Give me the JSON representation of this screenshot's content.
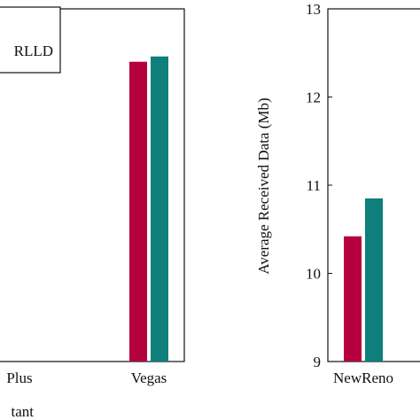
{
  "chart_data": [
    {
      "type": "bar",
      "x_label": "tant",
      "categories": [
        "Plus",
        "Vegas"
      ],
      "series": [
        {
          "name": "RLLD",
          "color": "#b5003f",
          "values": [
            null,
            12.4
          ]
        },
        {
          "color": "#0e7f7a",
          "values": [
            null,
            12.46
          ]
        }
      ],
      "ylim": [
        9,
        13
      ]
    },
    {
      "type": "bar",
      "y_label": "Average Received Data (Mb)",
      "categories": [
        "NewReno"
      ],
      "series": [
        {
          "color": "#b5003f",
          "values": [
            10.42
          ]
        },
        {
          "color": "#0e7f7a",
          "values": [
            10.85
          ]
        }
      ],
      "ylim": [
        9,
        13
      ],
      "yticks": [
        9,
        10,
        11,
        12,
        13
      ]
    }
  ]
}
